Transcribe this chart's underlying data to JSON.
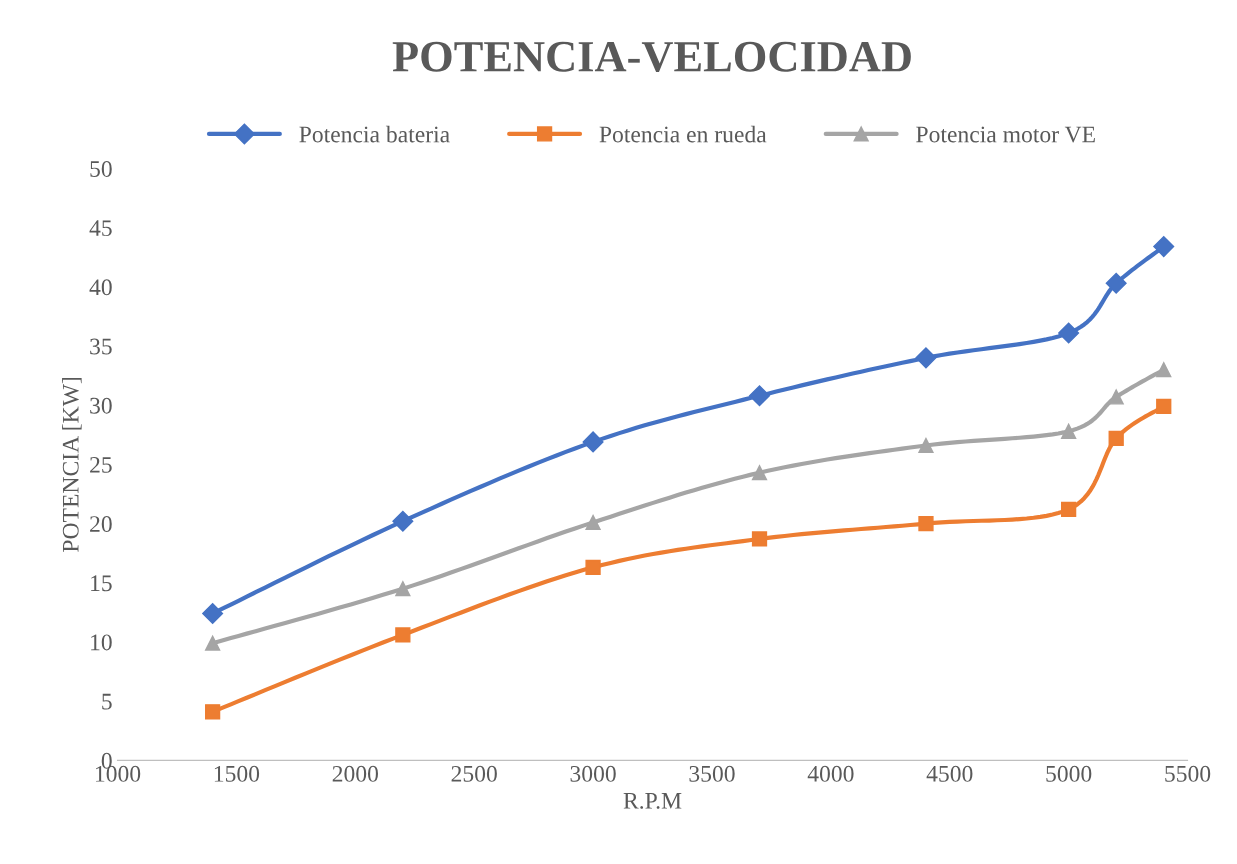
{
  "chart_data": {
    "type": "line",
    "title": "POTENCIA-VELOCIDAD",
    "xlabel": "R.P.M",
    "ylabel": "POTENCIA [KW]",
    "x": [
      1400,
      2200,
      3000,
      3700,
      4400,
      5000,
      5200,
      5400
    ],
    "series": [
      {
        "name": "Potencia bateria",
        "color": "#4472c4",
        "marker": "diamond",
        "values": [
          12.4,
          20.2,
          26.9,
          30.8,
          34.0,
          36.1,
          40.3,
          43.4
        ]
      },
      {
        "name": "Potencia en rueda",
        "color": "#ed7d31",
        "marker": "square",
        "values": [
          4.1,
          10.6,
          16.3,
          18.7,
          20.0,
          21.2,
          27.2,
          29.9
        ]
      },
      {
        "name": "Potencia motor VE",
        "color": "#a5a5a5",
        "marker": "triangle",
        "values": [
          9.9,
          14.5,
          20.1,
          24.3,
          26.6,
          27.8,
          30.7,
          33.0
        ]
      }
    ],
    "xlim": [
      1000,
      5500
    ],
    "xticks": [
      1000,
      1500,
      2000,
      2500,
      3000,
      3500,
      4000,
      4500,
      5000,
      5500
    ],
    "ylim": [
      0,
      50
    ],
    "yticks": [
      0,
      5,
      10,
      15,
      20,
      25,
      30,
      35,
      40,
      45,
      50
    ],
    "grid": false,
    "legend": "top",
    "line_style": "solid"
  }
}
